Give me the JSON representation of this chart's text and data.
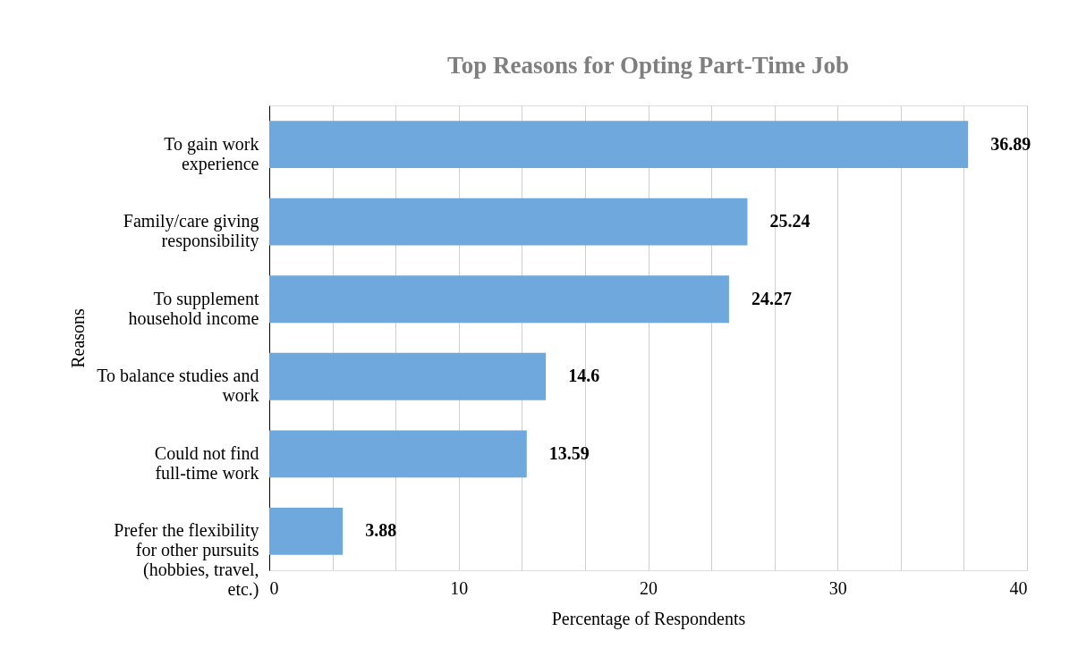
{
  "chart_data": {
    "type": "bar",
    "orientation": "horizontal",
    "title": "Top Reasons for Opting Part-Time Job",
    "xlabel": "Percentage of Respondents",
    "ylabel": "Reasons",
    "categories": [
      "To gain work experience",
      "Family/care giving responsibility",
      "To supplement household income",
      "To balance studies and work",
      "Could not find full-time work",
      "Prefer the flexibility for other pursuits (hobbies, travel, etc.)"
    ],
    "values": [
      36.89,
      25.24,
      24.27,
      14.6,
      13.59,
      3.88
    ],
    "color": "#6fa8dc",
    "data_labels": true,
    "grid": "x",
    "xlim": [
      0,
      40
    ],
    "xticks": [
      0,
      {
        "value": 3.333,
        "label": null
      },
      {
        "value": 6.667,
        "label": null
      },
      10,
      {
        "value": 13.333,
        "label": null
      },
      {
        "value": 16.667,
        "label": null
      },
      20,
      {
        "value": 23.333,
        "label": null
      },
      {
        "value": 26.667,
        "label": null
      },
      30,
      {
        "value": 33.333,
        "label": null
      },
      {
        "value": 36.667,
        "label": null
      },
      40
    ]
  }
}
